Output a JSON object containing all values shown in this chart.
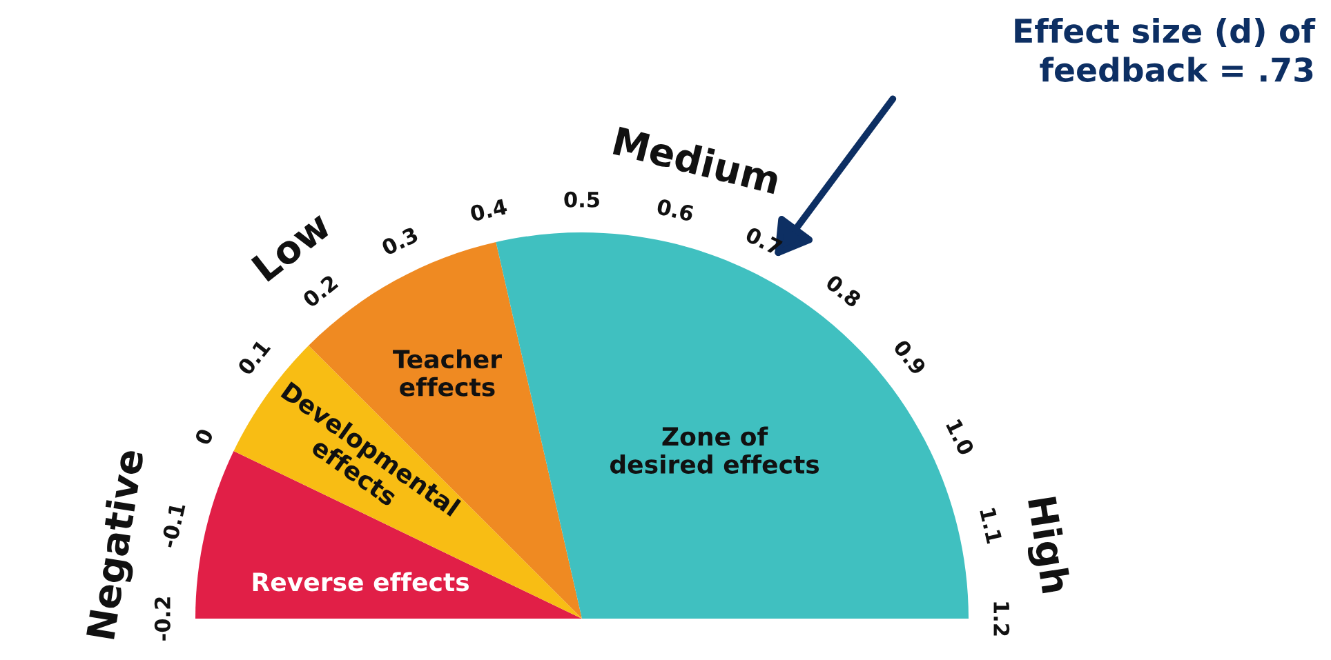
{
  "chart_data": {
    "type": "pie",
    "categories": [
      "Reverse effects",
      "Developmental\neffects",
      "Teacher\neffects",
      "Zone of\ndesired effects"
    ],
    "values": [
      14.29,
      10.71,
      17.86,
      57.14
    ],
    "colors": [
      "#e11f47",
      "#f8bd14",
      "#ef8a22",
      "#40c0c0"
    ],
    "annotations": [
      "-0.2",
      "-0.1",
      "0",
      "0.1",
      "0.2",
      "0.3",
      "0.4",
      "0.5",
      "0.6",
      "0.7",
      "0.8",
      "0.9",
      "1.0",
      "1.1",
      "1.2",
      "Negative",
      "Low",
      "Medium",
      "High",
      "Effect size (d) of\nfeedback = .73"
    ]
  }
}
